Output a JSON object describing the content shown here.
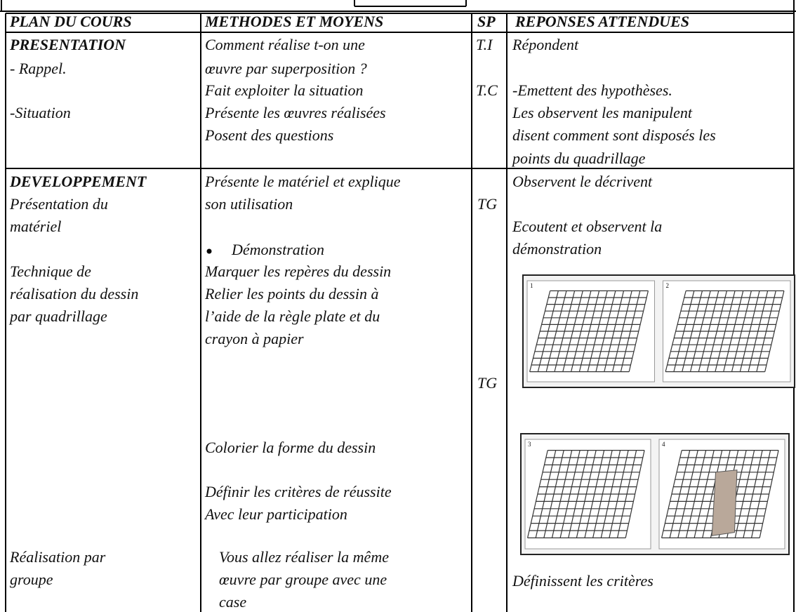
{
  "table": {
    "header": [
      "PLAN DU COURS",
      "METHODES ET MOYENS",
      "SP",
      "REPONSES ATTENDUES"
    ],
    "rows": [
      {
        "cells": [
          [
            "PRESENTATION",
            "- Rappel.",
            "-Situation"
          ],
          [
            "Comment réalise t-on une",
            "œuvre par superposition ?",
            "Fait exploiter la situation",
            "Présente les œuvres réalisées",
            "Posent des questions"
          ],
          [
            "T.I",
            "T.C"
          ],
          [
            "Répondent",
            "-Emettent des hypothèses.",
            "Les observent les manipulent",
            "disent comment sont disposés les",
            "points du quadrillage"
          ]
        ]
      },
      {
        "cells": [
          [
            "DEVELOPPEMENT",
            "Présentation du",
            "matériel",
            "Technique de",
            "réalisation du dessin",
            "par quadrillage",
            "Réalisation par",
            "groupe"
          ],
          [
            "Présente le matériel et explique",
            "son utilisation",
            "Démonstration",
            "Marquer les repères du dessin",
            "Relier les points du dessin à",
            "l’aide de la règle plate et du",
            "crayon à papier",
            "Colorier la forme du dessin",
            "Définir les critères de réussite",
            "Avec leur participation",
            "Vous allez réaliser la même",
            "œuvre par groupe avec une",
            "case"
          ],
          [
            "TG",
            "TG"
          ],
          [
            "Observent le décrivent",
            "Ecoutent et observent la",
            "démonstration",
            "Définissent les critères"
          ]
        ]
      }
    ]
  },
  "figures": [
    {
      "panels": [
        "1",
        "2"
      ]
    },
    {
      "panels": [
        "3",
        "4"
      ]
    }
  ]
}
